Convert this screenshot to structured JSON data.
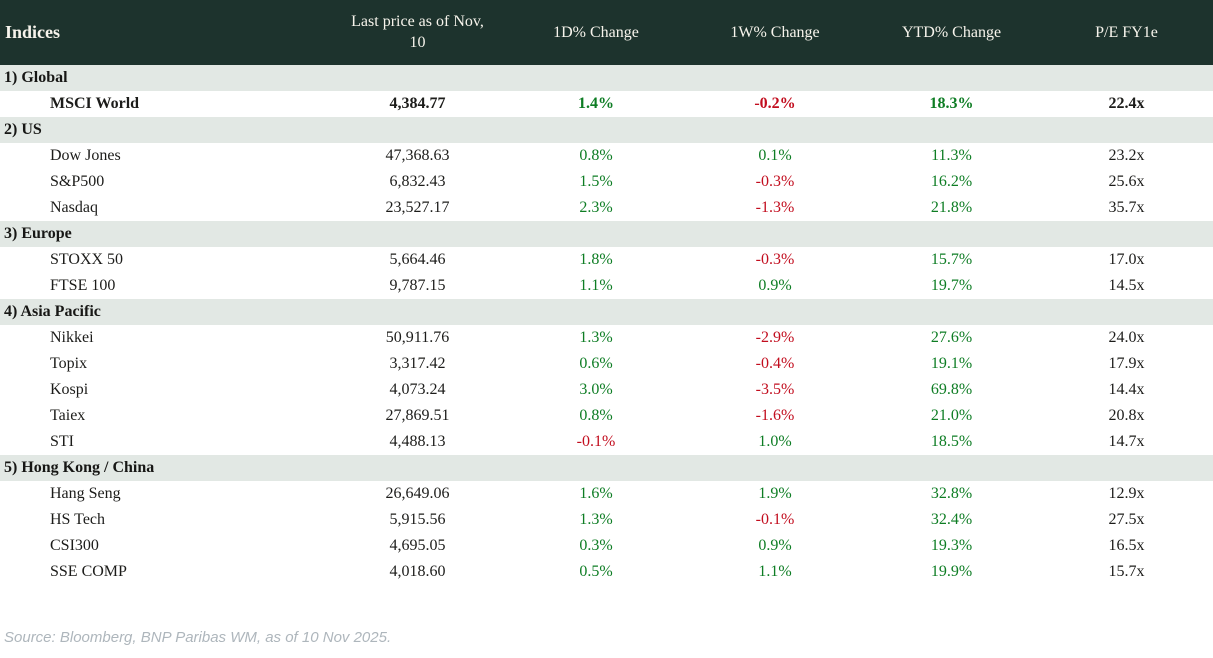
{
  "table": {
    "columns": [
      {
        "label": "Indices"
      },
      {
        "label": "Last price as of Nov, 10"
      },
      {
        "label": "1D% Change"
      },
      {
        "label": "1W% Change"
      },
      {
        "label": "YTD% Change"
      },
      {
        "label": "P/E FY1e"
      }
    ],
    "sections": [
      {
        "label": "1) Global",
        "rows": [
          {
            "name": "MSCI World",
            "bold": true,
            "last_price": "4,384.77",
            "change_1d": "1.4%",
            "change_1w": "-0.2%",
            "change_ytd": "18.3%",
            "pe_fy1e": "22.4x"
          }
        ]
      },
      {
        "label": "2) US",
        "rows": [
          {
            "name": "Dow Jones",
            "last_price": "47,368.63",
            "change_1d": "0.8%",
            "change_1w": "0.1%",
            "change_ytd": "11.3%",
            "pe_fy1e": "23.2x"
          },
          {
            "name": "S&P500",
            "last_price": "6,832.43",
            "change_1d": "1.5%",
            "change_1w": "-0.3%",
            "change_ytd": "16.2%",
            "pe_fy1e": "25.6x"
          },
          {
            "name": "Nasdaq",
            "last_price": "23,527.17",
            "change_1d": "2.3%",
            "change_1w": "-1.3%",
            "change_ytd": "21.8%",
            "pe_fy1e": "35.7x"
          }
        ]
      },
      {
        "label": "3) Europe",
        "rows": [
          {
            "name": "STOXX 50",
            "last_price": "5,664.46",
            "change_1d": "1.8%",
            "change_1w": "-0.3%",
            "change_ytd": "15.7%",
            "pe_fy1e": "17.0x"
          },
          {
            "name": "FTSE 100",
            "last_price": "9,787.15",
            "change_1d": "1.1%",
            "change_1w": "0.9%",
            "change_ytd": "19.7%",
            "pe_fy1e": "14.5x"
          }
        ]
      },
      {
        "label": "4) Asia Pacific",
        "rows": [
          {
            "name": "Nikkei",
            "last_price": "50,911.76",
            "change_1d": "1.3%",
            "change_1w": "-2.9%",
            "change_ytd": "27.6%",
            "pe_fy1e": "24.0x"
          },
          {
            "name": "Topix",
            "last_price": "3,317.42",
            "change_1d": "0.6%",
            "change_1w": "-0.4%",
            "change_ytd": "19.1%",
            "pe_fy1e": "17.9x"
          },
          {
            "name": "Kospi",
            "last_price": "4,073.24",
            "change_1d": "3.0%",
            "change_1w": "-3.5%",
            "change_ytd": "69.8%",
            "pe_fy1e": "14.4x"
          },
          {
            "name": "Taiex",
            "last_price": "27,869.51",
            "change_1d": "0.8%",
            "change_1w": "-1.6%",
            "change_ytd": "21.0%",
            "pe_fy1e": "20.8x"
          },
          {
            "name": "STI",
            "last_price": "4,488.13",
            "change_1d": "-0.1%",
            "change_1w": "1.0%",
            "change_ytd": "18.5%",
            "pe_fy1e": "14.7x"
          }
        ]
      },
      {
        "label": "5) Hong Kong / China",
        "rows": [
          {
            "name": "Hang Seng",
            "last_price": "26,649.06",
            "change_1d": "1.6%",
            "change_1w": "1.9%",
            "change_ytd": "32.8%",
            "pe_fy1e": "12.9x"
          },
          {
            "name": "HS Tech",
            "last_price": "5,915.56",
            "change_1d": "1.3%",
            "change_1w": "-0.1%",
            "change_ytd": "32.4%",
            "pe_fy1e": "27.5x"
          },
          {
            "name": "CSI300",
            "last_price": "4,695.05",
            "change_1d": "0.3%",
            "change_1w": "0.9%",
            "change_ytd": "19.3%",
            "pe_fy1e": "16.5x"
          },
          {
            "name": "SSE COMP",
            "last_price": "4,018.60",
            "change_1d": "0.5%",
            "change_1w": "1.1%",
            "change_ytd": "19.9%",
            "pe_fy1e": "15.7x"
          }
        ]
      }
    ]
  },
  "footer": {
    "source": "Source: Bloomberg, BNP Paribas WM, as of 10 Nov 2025."
  },
  "colors": {
    "header_bg": "#1d332d",
    "header_text": "#f7f4ec",
    "section_bg": "#e2e8e4",
    "positive": "#0e7d24",
    "negative": "#c20d1e",
    "text": "#1c1c1a",
    "footer_text": "#aeb6bc"
  }
}
